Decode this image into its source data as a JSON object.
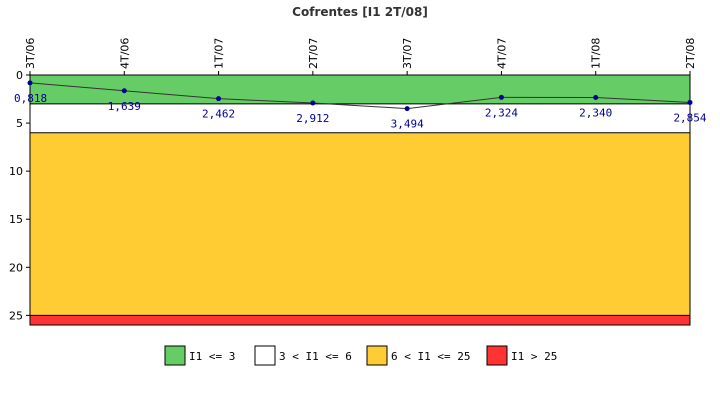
{
  "chart_data": {
    "type": "line",
    "title": "Cofrentes [I1 2T/08]",
    "categories": [
      "3T/06",
      "4T/06",
      "1T/07",
      "2T/07",
      "3T/07",
      "4T/07",
      "1T/08",
      "2T/08"
    ],
    "series": [
      {
        "values": [
          0.818,
          1.639,
          2.462,
          2.912,
          3.494,
          2.324,
          2.34,
          2.854
        ],
        "labels": [
          "0,818",
          "1,639",
          "2,462",
          "2,912",
          "3,494",
          "2,324",
          "2,340",
          "2,854"
        ],
        "color": "#000099"
      }
    ],
    "ylim": [
      0,
      26
    ],
    "y_inverted": true,
    "y_ticks": [
      0,
      5,
      10,
      15,
      20,
      25
    ],
    "bands": [
      {
        "from": 0,
        "to": 3,
        "color": "#66cc66",
        "legend": "I1 <= 3"
      },
      {
        "from": 3,
        "to": 6,
        "color": "#ffffff",
        "legend": "3 < I1 <= 6"
      },
      {
        "from": 6,
        "to": 25,
        "color": "#ffcc33",
        "legend": "6 < I1 <= 25"
      },
      {
        "from": 25,
        "to": 26,
        "color": "#ff3333",
        "legend": "I1 > 25"
      }
    ],
    "legend_position": "bottom",
    "grid": false
  }
}
